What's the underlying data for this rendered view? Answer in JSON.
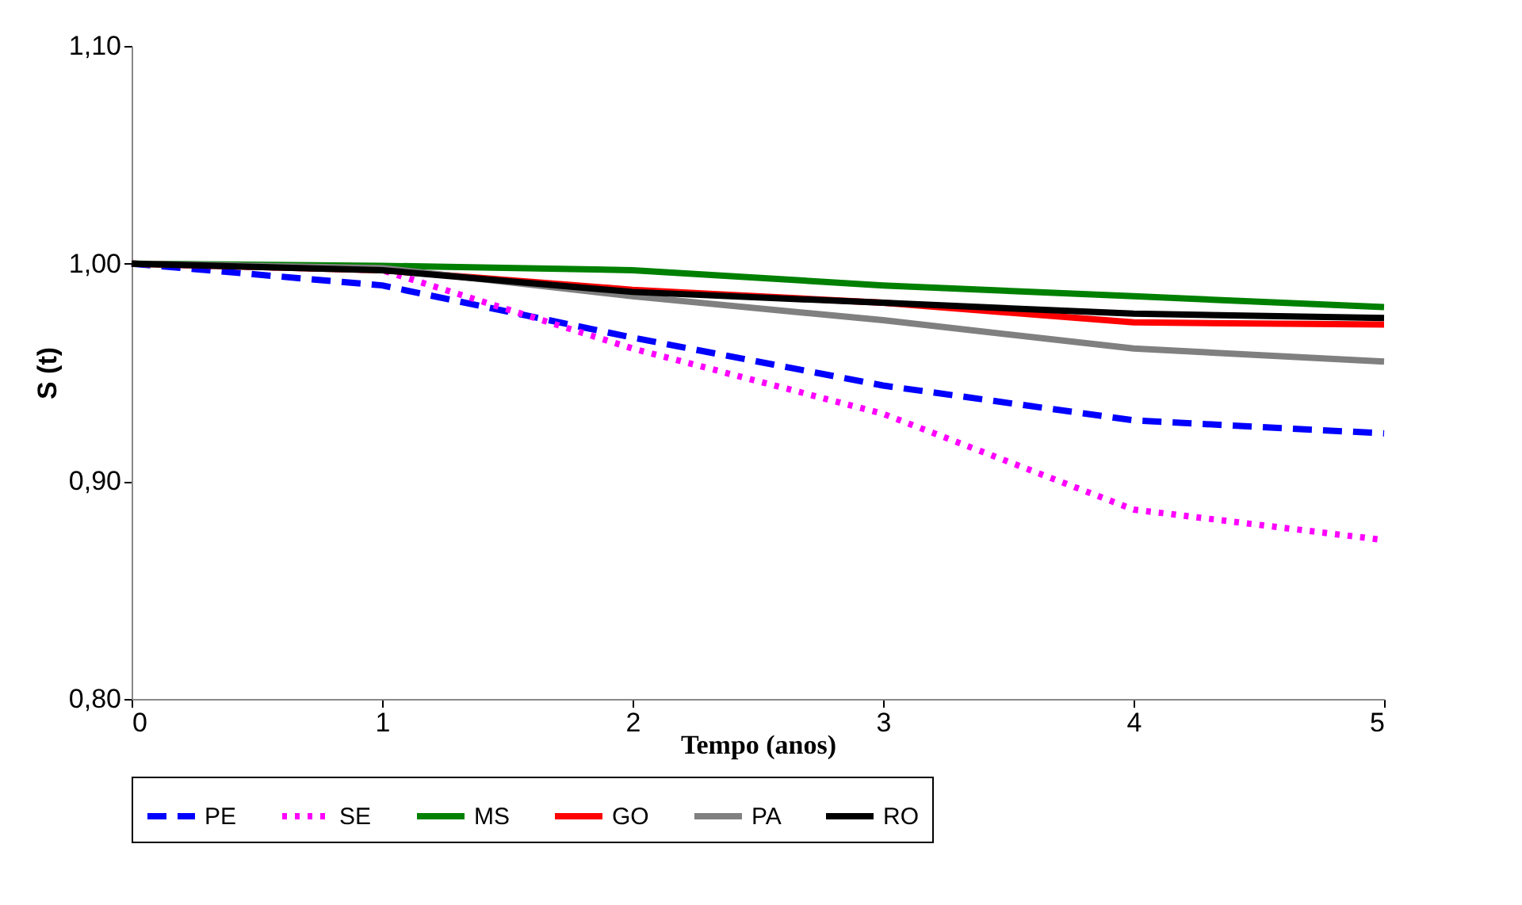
{
  "chart_data": {
    "type": "line",
    "xlabel": "Tempo (anos)",
    "ylabel": "S (t)",
    "x": [
      0,
      1,
      2,
      3,
      4,
      5
    ],
    "xlim": [
      0,
      5
    ],
    "xticks": [
      0,
      1,
      2,
      3,
      4,
      5
    ],
    "ylim": [
      0.8,
      1.1
    ],
    "yticks": [
      {
        "value": 0.8,
        "label": "0,80"
      },
      {
        "value": 0.9,
        "label": "0,90"
      },
      {
        "value": 1.0,
        "label": "1,00"
      },
      {
        "value": 1.1,
        "label": "1,10"
      }
    ],
    "grid": false,
    "legend": "bottom",
    "marker": "none",
    "series": [
      {
        "name": "PE",
        "color": "#0000ff",
        "line_style": "dashed",
        "values": [
          1.0,
          0.99,
          0.966,
          0.944,
          0.928,
          0.922
        ]
      },
      {
        "name": "SE",
        "color": "#ff00ff",
        "line_style": "dotted",
        "values": [
          1.0,
          0.997,
          0.961,
          0.931,
          0.887,
          0.873
        ]
      },
      {
        "name": "MS",
        "color": "#008000",
        "line_style": "solid",
        "values": [
          1.0,
          0.999,
          0.997,
          0.99,
          0.985,
          0.98
        ]
      },
      {
        "name": "GO",
        "color": "#ff0000",
        "line_style": "solid",
        "values": [
          1.0,
          0.997,
          0.988,
          0.982,
          0.973,
          0.972
        ]
      },
      {
        "name": "PA",
        "color": "#808080",
        "line_style": "solid",
        "values": [
          1.0,
          0.998,
          0.985,
          0.974,
          0.961,
          0.955
        ]
      },
      {
        "name": "RO",
        "color": "#000000",
        "line_style": "solid",
        "values": [
          1.0,
          0.997,
          0.987,
          0.982,
          0.977,
          0.975
        ]
      }
    ]
  }
}
